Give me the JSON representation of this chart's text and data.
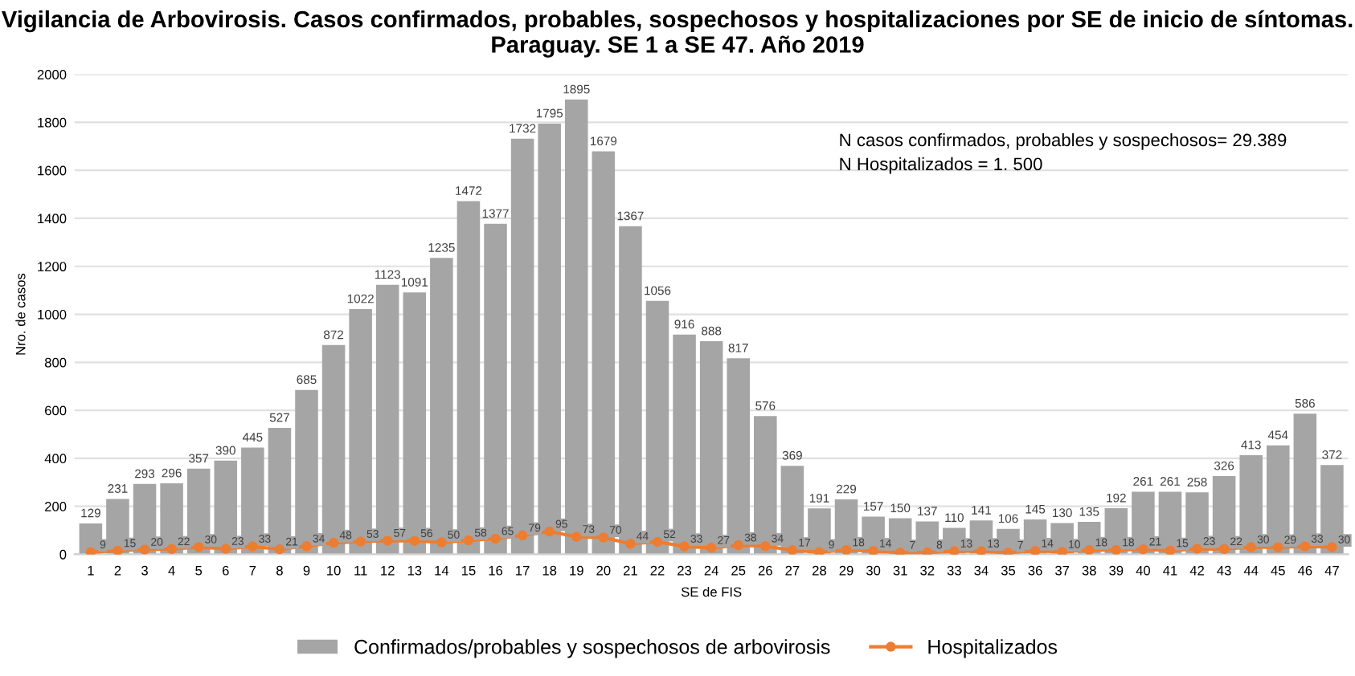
{
  "chart_data": {
    "type": "bar",
    "title": "Vigilancia de Arbovirosis. Casos confirmados, probables, sospechosos y hospitalizaciones por SE de inicio de síntomas. Paraguay. SE 1 a SE 47. Año 2019",
    "xlabel": "SE de FIS",
    "ylabel": "Nro. de casos",
    "categories": [
      "1",
      "2",
      "3",
      "4",
      "5",
      "6",
      "7",
      "8",
      "9",
      "10",
      "11",
      "12",
      "13",
      "14",
      "15",
      "16",
      "17",
      "18",
      "19",
      "20",
      "21",
      "22",
      "23",
      "24",
      "25",
      "26",
      "27",
      "28",
      "29",
      "30",
      "31",
      "32",
      "33",
      "34",
      "35",
      "36",
      "37",
      "38",
      "39",
      "40",
      "41",
      "42",
      "43",
      "44",
      "45",
      "46",
      "47"
    ],
    "series": [
      {
        "name": "Confirmados/probables y sospechosos de arbovirosis",
        "color": "#a5a5a5",
        "values": [
          129,
          231,
          293,
          296,
          357,
          390,
          445,
          527,
          685,
          872,
          1022,
          1123,
          1091,
          1235,
          1472,
          1377,
          1732,
          1795,
          1895,
          1679,
          1367,
          1056,
          916,
          888,
          817,
          576,
          369,
          191,
          229,
          157,
          150,
          137,
          110,
          141,
          106,
          145,
          130,
          135,
          192,
          261,
          261,
          258,
          326,
          413,
          454,
          586,
          372
        ]
      },
      {
        "name": "Hospitalizados",
        "type": "line",
        "color": "#ed7d31",
        "values": [
          9,
          15,
          20,
          22,
          30,
          23,
          33,
          21,
          34,
          48,
          53,
          57,
          56,
          50,
          58,
          65,
          79,
          95,
          73,
          70,
          44,
          52,
          33,
          27,
          38,
          34,
          17,
          9,
          18,
          14,
          7,
          8,
          13,
          13,
          7,
          14,
          10,
          18,
          18,
          21,
          15,
          23,
          22,
          30,
          29,
          33,
          30
        ]
      }
    ],
    "ylim": [
      0,
      2000
    ],
    "yticks": [
      0,
      200,
      400,
      600,
      800,
      1000,
      1200,
      1400,
      1600,
      1800,
      2000
    ],
    "grid": "y",
    "legend": "bottom",
    "marker": "circle",
    "line_style": "solid",
    "data_labels": true,
    "annotations": [
      "N casos confirmados, probables y sospechosos= 29.389",
      "N Hospitalizados = 1. 500"
    ]
  }
}
